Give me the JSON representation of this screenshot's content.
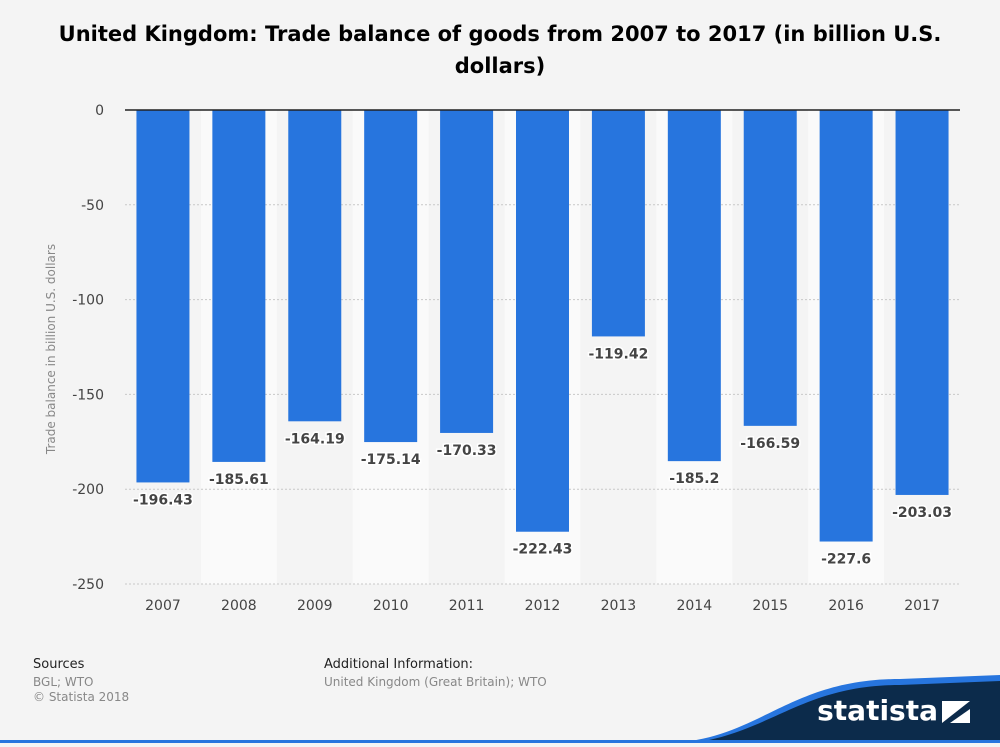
{
  "title": {
    "line1": "United Kingdom: Trade balance of goods from 2007 to 2017 (in billion U.S.",
    "line2": "dollars)"
  },
  "footer": {
    "sources_heading": "Sources",
    "sources_line1": "BGL; WTO",
    "sources_line2": "© Statista 2018",
    "additional_heading": "Additional Information:",
    "additional_text": "United Kingdom (Great Britain); WTO"
  },
  "brand": {
    "name": "statista"
  },
  "colors": {
    "bar": "#2775de",
    "grid": "#c8c8c8",
    "axis": "#222222",
    "label": "#444444",
    "background": "#f4f4f4",
    "brand": "#0c2b4b",
    "accent": "#2775de"
  },
  "chart_data": {
    "type": "bar",
    "ylabel": "Trade balance in billion U.S. dollars",
    "xlabel": "",
    "ylim": [
      -250,
      0
    ],
    "yticks": [
      0,
      -50,
      -100,
      -150,
      -200,
      -250
    ],
    "grid": true,
    "categories": [
      "2007",
      "2008",
      "2009",
      "2010",
      "2011",
      "2012",
      "2013",
      "2014",
      "2015",
      "2016",
      "2017"
    ],
    "values": [
      -196.43,
      -185.61,
      -164.19,
      -175.14,
      -170.33,
      -222.43,
      -119.42,
      -185.2,
      -166.59,
      -227.6,
      -203.03
    ],
    "data_labels": [
      "-196.43",
      "-185.61",
      "-164.19",
      "-175.14",
      "-170.33",
      "-222.43",
      "-119.42",
      "-185.2",
      "-166.59",
      "-227.6",
      "-203.03"
    ]
  }
}
